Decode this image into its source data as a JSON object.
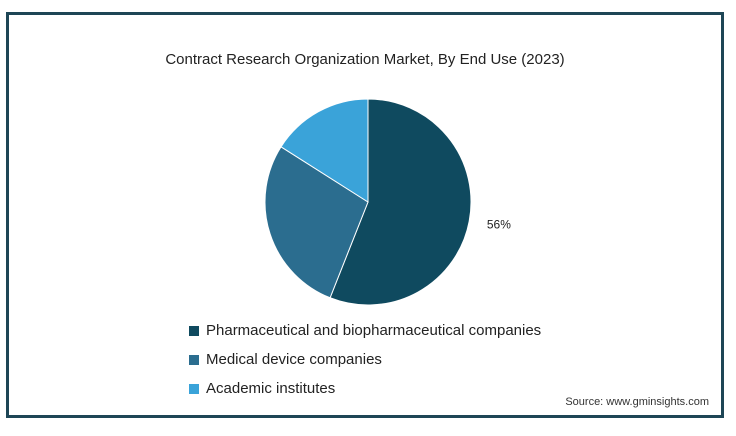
{
  "chart_data": {
    "type": "pie",
    "title": "Contract Research Organization Market, By End Use (2023)",
    "categories": [
      "Pharmaceutical and biopharmaceutical companies",
      "Medical device companies",
      "Academic institutes"
    ],
    "values": [
      56,
      28,
      16
    ],
    "colors": [
      "#0f4a5f",
      "#2b6d8f",
      "#3aa3d9"
    ],
    "data_labels": [
      "56%",
      "",
      ""
    ],
    "legend_position": "bottom",
    "source": "Source: www.gminsights.com"
  }
}
